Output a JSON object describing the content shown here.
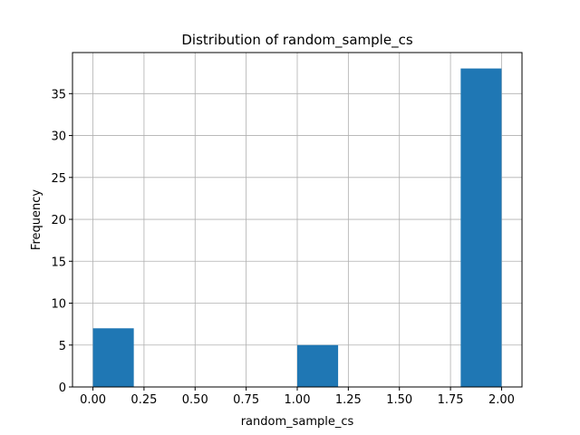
{
  "chart_data": {
    "type": "bar",
    "title": "Distribution of  random_sample_cs",
    "xlabel": "random_sample_cs",
    "ylabel": "Frequency",
    "bins": [
      {
        "x0": 0.0,
        "x1": 0.2,
        "count": 7
      },
      {
        "x0": 0.2,
        "x1": 0.4,
        "count": 0
      },
      {
        "x0": 0.4,
        "x1": 0.6,
        "count": 0
      },
      {
        "x0": 0.6,
        "x1": 0.8,
        "count": 0
      },
      {
        "x0": 0.8,
        "x1": 1.0,
        "count": 0
      },
      {
        "x0": 1.0,
        "x1": 1.2,
        "count": 5
      },
      {
        "x0": 1.2,
        "x1": 1.4,
        "count": 0
      },
      {
        "x0": 1.4,
        "x1": 1.6,
        "count": 0
      },
      {
        "x0": 1.6,
        "x1": 1.8,
        "count": 0
      },
      {
        "x0": 1.8,
        "x1": 2.0,
        "count": 38
      }
    ],
    "xlim": [
      -0.1,
      2.1
    ],
    "ylim": [
      0,
      39.9
    ],
    "xticks": [
      "0.00",
      "0.25",
      "0.50",
      "0.75",
      "1.00",
      "1.25",
      "1.50",
      "1.75",
      "2.00"
    ],
    "yticks": [
      "0",
      "5",
      "10",
      "15",
      "20",
      "25",
      "30",
      "35"
    ],
    "grid": true,
    "bar_color": "#1f77b4"
  }
}
